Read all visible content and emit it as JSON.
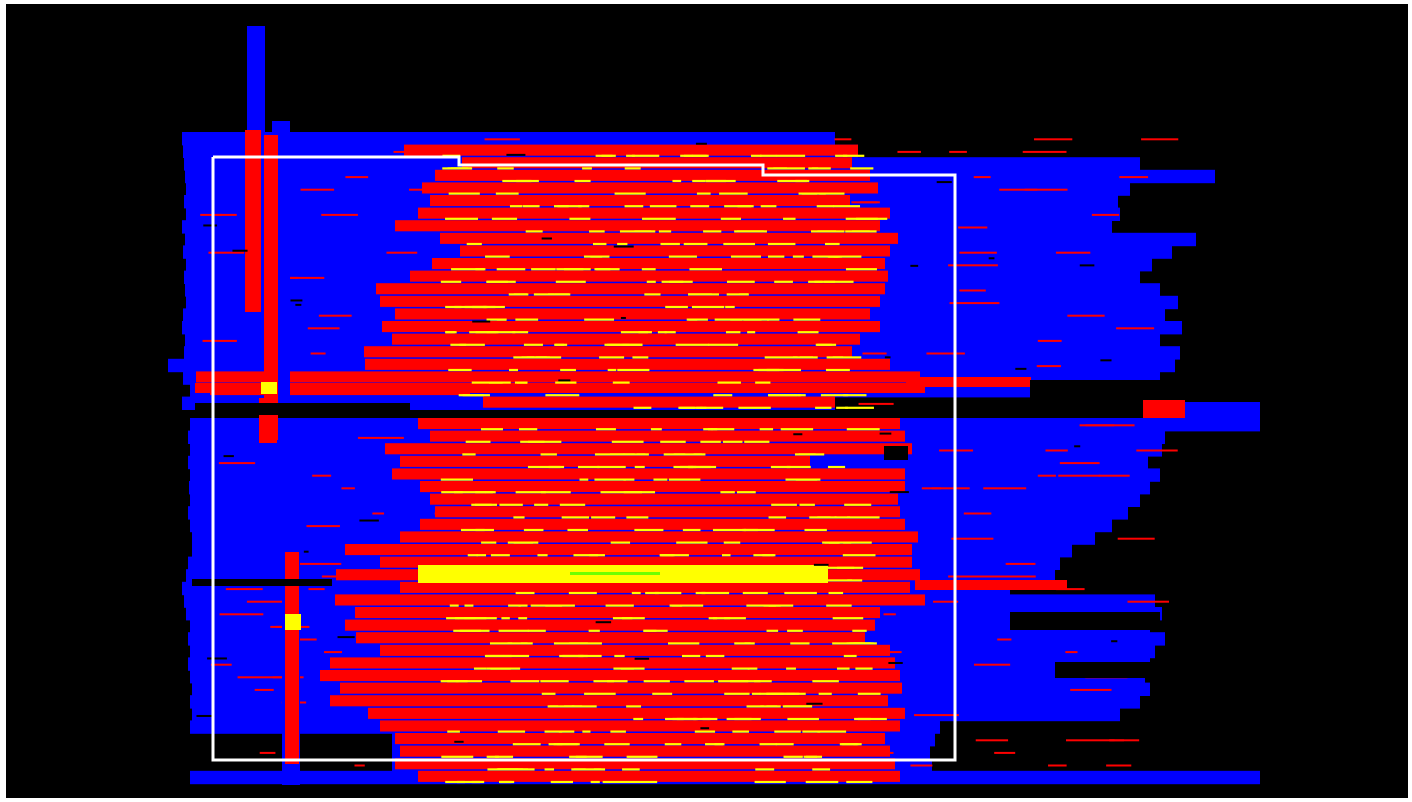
{
  "visualization": {
    "kind": "survey-coverage-overlay-map",
    "background_color": "#000000",
    "frame_color": "#ffffff",
    "colors": {
      "single_coverage": "#0000ff",
      "double_coverage": "#ff0000",
      "triple_coverage": "#ffff00",
      "high_overlap_highlight": "#6dff00",
      "boundary": "#ffffff"
    },
    "legend": [],
    "labels": []
  }
}
